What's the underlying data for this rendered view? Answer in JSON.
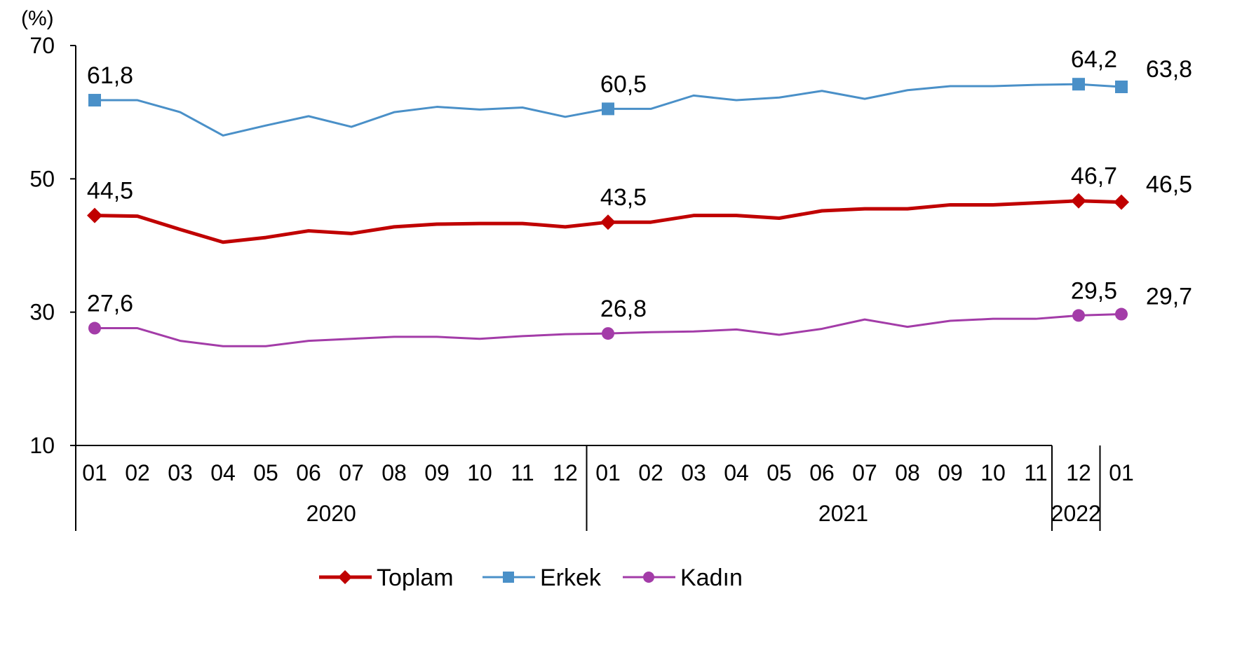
{
  "chart_data": {
    "type": "line",
    "ylabel": "(%)",
    "ylim": [
      10,
      70
    ],
    "y_ticks": [
      "10",
      "30",
      "50",
      "70"
    ],
    "categories": [
      "01",
      "02",
      "03",
      "04",
      "05",
      "06",
      "07",
      "08",
      "09",
      "10",
      "11",
      "12",
      "01",
      "02",
      "03",
      "04",
      "05",
      "06",
      "07",
      "08",
      "09",
      "10",
      "11",
      "12",
      "01"
    ],
    "year_groups": [
      {
        "label": "2020",
        "start": 0,
        "count": 12
      },
      {
        "label": "2021",
        "start": 12,
        "count": 12
      },
      {
        "label": "2022",
        "start": 24,
        "count": 1
      }
    ],
    "grid": false,
    "legend_position": "bottom",
    "series": [
      {
        "name": "Toplam",
        "color": "#c00000",
        "marker": "diamond",
        "values": [
          44.5,
          44.4,
          42.4,
          40.5,
          41.2,
          42.2,
          41.8,
          42.8,
          43.2,
          43.3,
          43.3,
          42.8,
          43.5,
          43.5,
          44.5,
          44.5,
          44.1,
          45.2,
          45.5,
          45.5,
          46.1,
          46.1,
          46.4,
          46.7,
          46.5
        ],
        "labeled_points": [
          {
            "index": 0,
            "text": "44,5"
          },
          {
            "index": 12,
            "text": "43,5"
          },
          {
            "index": 23,
            "text": "46,7"
          },
          {
            "index": 24,
            "text": "46,5"
          }
        ]
      },
      {
        "name": "Erkek",
        "color": "#4a90c8",
        "marker": "square",
        "values": [
          61.8,
          61.8,
          60.0,
          56.5,
          58.0,
          59.4,
          57.8,
          60.0,
          60.8,
          60.4,
          60.7,
          59.3,
          60.5,
          60.5,
          62.5,
          61.8,
          62.2,
          63.2,
          62.0,
          63.3,
          63.9,
          63.9,
          64.1,
          64.2,
          63.8
        ],
        "labeled_points": [
          {
            "index": 0,
            "text": "61,8"
          },
          {
            "index": 12,
            "text": "60,5"
          },
          {
            "index": 23,
            "text": "64,2"
          },
          {
            "index": 24,
            "text": "63,8"
          }
        ]
      },
      {
        "name": "Kadın",
        "color": "#a33ca8",
        "marker": "circle",
        "values": [
          27.6,
          27.6,
          25.7,
          24.9,
          24.9,
          25.7,
          26.0,
          26.3,
          26.3,
          26.0,
          26.4,
          26.7,
          26.8,
          27.0,
          27.1,
          27.4,
          26.6,
          27.5,
          28.9,
          27.8,
          28.7,
          29.0,
          29.0,
          29.5,
          29.7
        ],
        "labeled_points": [
          {
            "index": 0,
            "text": "27,6"
          },
          {
            "index": 12,
            "text": "26,8"
          },
          {
            "index": 23,
            "text": "29,5"
          },
          {
            "index": 24,
            "text": "29,7"
          }
        ]
      }
    ]
  }
}
